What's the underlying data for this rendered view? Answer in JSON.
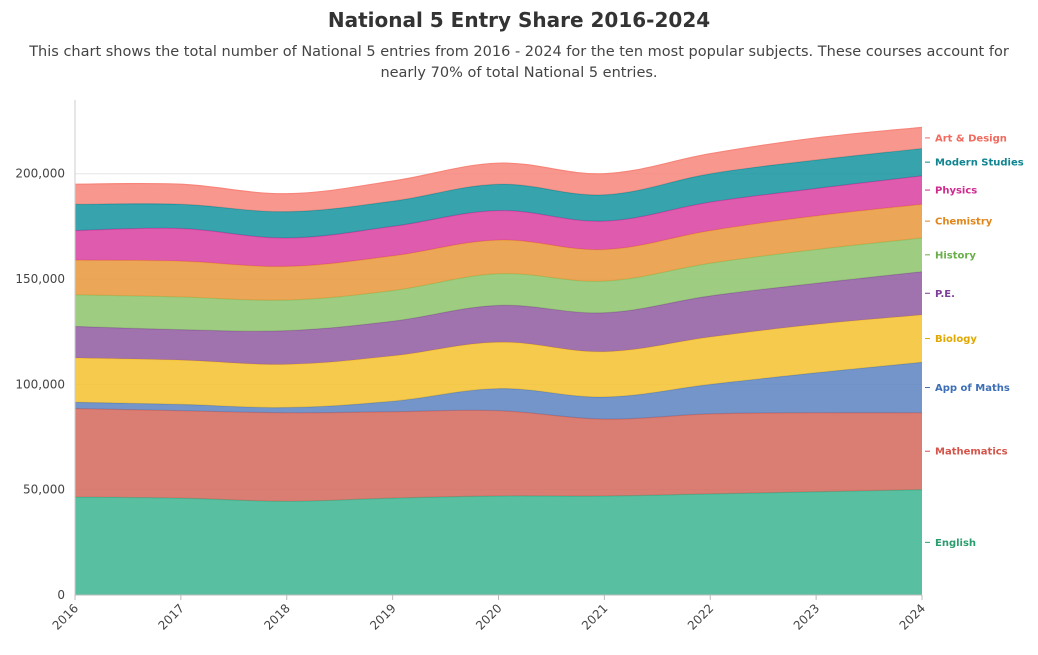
{
  "title": "National 5 Entry Share 2016-2024",
  "subtitle": "This chart shows the total number of National 5 entries from 2016 - 2024 for the ten most popular subjects. These courses account for nearly 70% of total National 5 entries.",
  "chart_data": {
    "type": "area",
    "stacked": true,
    "title": "National 5 Entry Share 2016-2024",
    "x": [
      "2016",
      "2017",
      "2018",
      "2019",
      "2020",
      "2021",
      "2022",
      "2023",
      "2024"
    ],
    "ylim": [
      0,
      235000
    ],
    "y_ticks": [
      0,
      50000,
      100000,
      150000,
      200000
    ],
    "y_tick_labels": [
      "0",
      "50,000",
      "100,000",
      "150,000",
      "200,000"
    ],
    "grid": true,
    "legend": "direct labels at right end of each series",
    "series": [
      {
        "name": "English",
        "color": "#3bb48f",
        "values": [
          46500,
          46000,
          44500,
          46000,
          47000,
          47000,
          48000,
          49000,
          50000
        ]
      },
      {
        "name": "Mathematics",
        "color": "#d4675b",
        "values": [
          42000,
          41500,
          42000,
          41000,
          40500,
          36500,
          38000,
          37500,
          36500
        ]
      },
      {
        "name": "App of Maths",
        "color": "#5b82bf",
        "values": [
          3000,
          3000,
          2500,
          5000,
          10500,
          10500,
          14000,
          19000,
          24000
        ]
      },
      {
        "name": "Biology",
        "color": "#f5c12e",
        "values": [
          21000,
          21000,
          20500,
          21500,
          22000,
          21500,
          22500,
          23000,
          22500
        ]
      },
      {
        "name": "P.E.",
        "color": "#8f5aa0",
        "values": [
          15000,
          14500,
          16000,
          16500,
          17500,
          18500,
          19500,
          19500,
          20500
        ]
      },
      {
        "name": "History",
        "color": "#8dc46c",
        "values": [
          15000,
          15500,
          14500,
          14500,
          15000,
          15000,
          15500,
          16000,
          16000
        ]
      },
      {
        "name": "Chemistry",
        "color": "#e8963a",
        "values": [
          16500,
          17000,
          16000,
          16500,
          16000,
          15000,
          15500,
          16000,
          16000
        ]
      },
      {
        "name": "Physics",
        "color": "#d93ea0",
        "values": [
          14000,
          15500,
          13500,
          14000,
          14000,
          13500,
          13500,
          13000,
          13500
        ]
      },
      {
        "name": "Modern Studies",
        "color": "#14939e",
        "values": [
          12500,
          11500,
          12500,
          12000,
          12500,
          12500,
          13500,
          13500,
          13000
        ]
      },
      {
        "name": "Art & Design",
        "color": "#f7857a",
        "values": [
          9500,
          9500,
          8500,
          9500,
          10000,
          10000,
          9500,
          10500,
          10000
        ]
      }
    ],
    "label_colors": {
      "English": "#2a9d6f",
      "Mathematics": "#d4544a",
      "App of Maths": "#3d6fb6",
      "Biology": "#e0a800",
      "P.E.": "#7d3e98",
      "History": "#6aae4c",
      "Chemistry": "#e0861a",
      "Physics": "#d12a8f",
      "Modern Studies": "#0e8590",
      "Art & Design": "#f06a5e"
    }
  }
}
